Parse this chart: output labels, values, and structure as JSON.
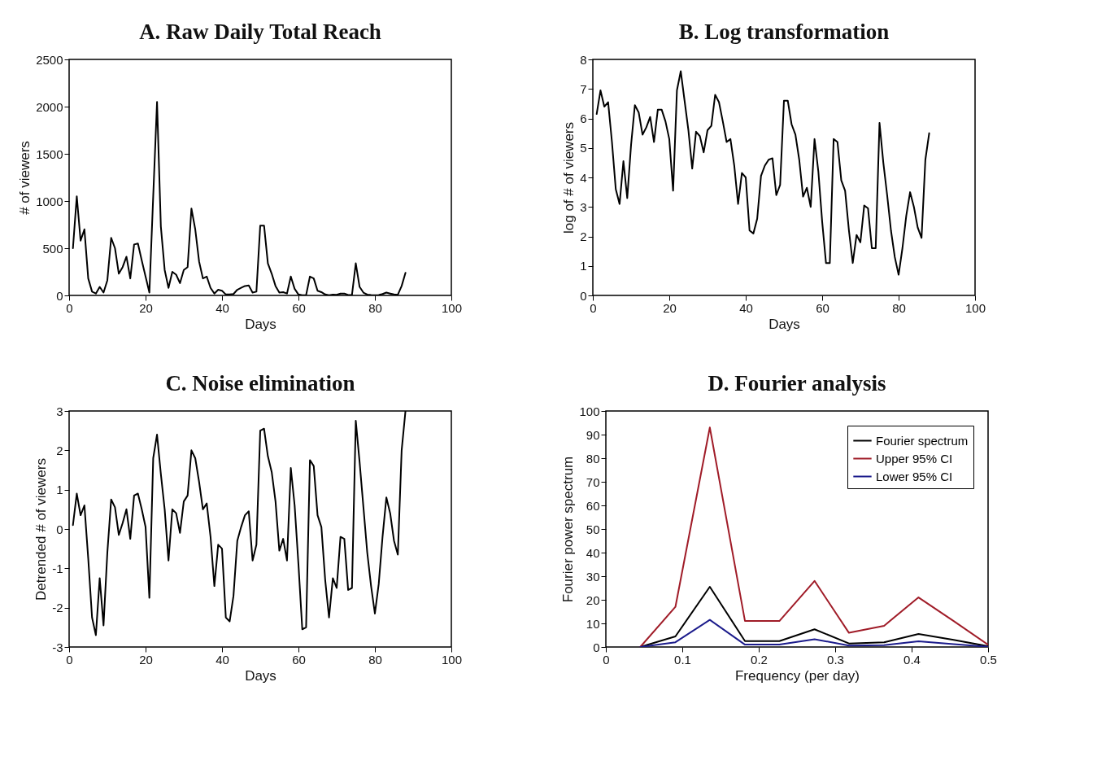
{
  "chart_data": [
    {
      "type": "line",
      "title": "A. Raw Daily Total Reach",
      "xlabel": "Days",
      "ylabel": "# of viewers",
      "x": [
        1,
        2,
        3,
        4,
        5,
        6,
        7,
        8,
        9,
        10,
        11,
        12,
        13,
        14,
        15,
        16,
        17,
        18,
        19,
        20,
        21,
        22,
        23,
        24,
        25,
        26,
        27,
        28,
        29,
        30,
        31,
        32,
        33,
        34,
        35,
        36,
        37,
        38,
        39,
        40,
        41,
        42,
        43,
        44,
        45,
        46,
        47,
        48,
        49,
        50,
        51,
        52,
        53,
        54,
        55,
        56,
        57,
        58,
        59,
        60,
        61,
        62,
        63,
        64,
        65,
        66,
        67,
        68,
        69,
        70,
        71,
        72,
        73,
        74,
        75,
        76,
        77,
        78,
        79,
        80,
        81,
        82,
        83,
        84,
        85,
        86,
        87,
        88
      ],
      "series": [
        {
          "color": "#000000",
          "values": [
            500,
            1050,
            580,
            700,
            180,
            40,
            20,
            90,
            30,
            160,
            610,
            500,
            230,
            300,
            410,
            180,
            540,
            550,
            370,
            200,
            30,
            1050,
            2050,
            730,
            270,
            80,
            250,
            220,
            130,
            270,
            300,
            920,
            700,
            360,
            180,
            200,
            80,
            20,
            60,
            50,
            10,
            10,
            15,
            60,
            80,
            100,
            105,
            30,
            40,
            740,
            740,
            340,
            230,
            100,
            30,
            35,
            20,
            200,
            70,
            10,
            3,
            3,
            200,
            180,
            50,
            35,
            10,
            3,
            8,
            6,
            20,
            20,
            5,
            5,
            340,
            90,
            30,
            9,
            4,
            2,
            5,
            15,
            30,
            20,
            10,
            7,
            100,
            240
          ]
        }
      ],
      "xlim": [
        0,
        100
      ],
      "xticks": [
        0,
        20,
        40,
        60,
        80,
        100
      ],
      "ylim": [
        0,
        2500
      ],
      "yticks": [
        0,
        500,
        1000,
        1500,
        2000,
        2500
      ],
      "grid": false
    },
    {
      "type": "line",
      "title": "B. Log transformation",
      "xlabel": "Days",
      "ylabel": "log of # of viewers",
      "x": [
        1,
        2,
        3,
        4,
        5,
        6,
        7,
        8,
        9,
        10,
        11,
        12,
        13,
        14,
        15,
        16,
        17,
        18,
        19,
        20,
        21,
        22,
        23,
        24,
        25,
        26,
        27,
        28,
        29,
        30,
        31,
        32,
        33,
        34,
        35,
        36,
        37,
        38,
        39,
        40,
        41,
        42,
        43,
        44,
        45,
        46,
        47,
        48,
        49,
        50,
        51,
        52,
        53,
        54,
        55,
        56,
        57,
        58,
        59,
        60,
        61,
        62,
        63,
        64,
        65,
        66,
        67,
        68,
        69,
        70,
        71,
        72,
        73,
        74,
        75,
        76,
        77,
        78,
        79,
        80,
        81,
        82,
        83,
        84,
        85,
        86,
        87,
        88
      ],
      "series": [
        {
          "color": "#000000",
          "values": [
            6.15,
            6.95,
            6.4,
            6.55,
            5.2,
            3.6,
            3.1,
            4.55,
            3.3,
            5.1,
            6.45,
            6.2,
            5.45,
            5.7,
            6.05,
            5.2,
            6.3,
            6.3,
            5.9,
            5.3,
            3.55,
            6.95,
            7.6,
            6.6,
            5.6,
            4.3,
            5.55,
            5.4,
            4.85,
            5.6,
            5.75,
            6.8,
            6.55,
            5.9,
            5.2,
            5.3,
            4.4,
            3.1,
            4.15,
            4.0,
            2.2,
            2.1,
            2.6,
            4.05,
            4.4,
            4.6,
            4.65,
            3.4,
            3.75,
            6.6,
            6.6,
            5.8,
            5.45,
            4.6,
            3.35,
            3.65,
            3.0,
            5.3,
            4.2,
            2.5,
            1.1,
            1.1,
            5.3,
            5.2,
            3.9,
            3.55,
            2.2,
            1.1,
            2.05,
            1.8,
            3.05,
            2.95,
            1.6,
            1.6,
            5.85,
            4.5,
            3.4,
            2.2,
            1.3,
            0.7,
            1.6,
            2.7,
            3.5,
            3.0,
            2.3,
            1.95,
            4.6,
            5.5
          ]
        }
      ],
      "xlim": [
        0,
        100
      ],
      "xticks": [
        0,
        20,
        40,
        60,
        80,
        100
      ],
      "ylim": [
        0,
        8
      ],
      "yticks": [
        0,
        1,
        2,
        3,
        4,
        5,
        6,
        7,
        8
      ],
      "grid": false
    },
    {
      "type": "line",
      "title": "C. Noise elimination",
      "xlabel": "Days",
      "ylabel": "Detrended # of viewers",
      "x": [
        1,
        2,
        3,
        4,
        5,
        6,
        7,
        8,
        9,
        10,
        11,
        12,
        13,
        14,
        15,
        16,
        17,
        18,
        19,
        20,
        21,
        22,
        23,
        24,
        25,
        26,
        27,
        28,
        29,
        30,
        31,
        32,
        33,
        34,
        35,
        36,
        37,
        38,
        39,
        40,
        41,
        42,
        43,
        44,
        45,
        46,
        47,
        48,
        49,
        50,
        51,
        52,
        53,
        54,
        55,
        56,
        57,
        58,
        59,
        60,
        61,
        62,
        63,
        64,
        65,
        66,
        67,
        68,
        69,
        70,
        71,
        72,
        73,
        74,
        75,
        76,
        77,
        78,
        79,
        80,
        81,
        82,
        83,
        84,
        85,
        86,
        87,
        88
      ],
      "series": [
        {
          "color": "#000000",
          "values": [
            0.1,
            0.9,
            0.35,
            0.6,
            -0.75,
            -2.25,
            -2.7,
            -1.25,
            -2.45,
            -0.6,
            0.75,
            0.55,
            -0.15,
            0.15,
            0.5,
            -0.25,
            0.85,
            0.9,
            0.5,
            0.05,
            -1.75,
            1.8,
            2.4,
            1.4,
            0.5,
            -0.8,
            0.5,
            0.4,
            -0.1,
            0.7,
            0.85,
            2.0,
            1.8,
            1.2,
            0.5,
            0.65,
            -0.2,
            -1.45,
            -0.4,
            -0.5,
            -2.25,
            -2.35,
            -1.7,
            -0.3,
            0.05,
            0.35,
            0.45,
            -0.8,
            -0.4,
            2.5,
            2.55,
            1.85,
            1.45,
            0.7,
            -0.55,
            -0.25,
            -0.8,
            1.55,
            0.6,
            -0.9,
            -2.55,
            -2.5,
            1.75,
            1.6,
            0.35,
            0.05,
            -1.3,
            -2.25,
            -1.25,
            -1.5,
            -0.2,
            -0.25,
            -1.55,
            -1.5,
            2.75,
            1.7,
            0.55,
            -0.6,
            -1.45,
            -2.15,
            -1.4,
            -0.2,
            0.8,
            0.4,
            -0.3,
            -0.65,
            2.0,
            3.0
          ]
        }
      ],
      "xlim": [
        0,
        100
      ],
      "xticks": [
        0,
        20,
        40,
        60,
        80,
        100
      ],
      "ylim": [
        -3,
        3
      ],
      "yticks": [
        -3,
        -2,
        -1,
        0,
        1,
        2,
        3
      ],
      "grid": false
    },
    {
      "type": "line",
      "title": "D. Fourier analysis",
      "xlabel": "Frequency (per day)",
      "ylabel": "Fourier power spectrum",
      "x": [
        0.045,
        0.091,
        0.136,
        0.182,
        0.227,
        0.273,
        0.318,
        0.364,
        0.409,
        0.455,
        0.5
      ],
      "series": [
        {
          "name": "Fourier spectrum",
          "color": "#000000",
          "values": [
            0,
            4.5,
            25.5,
            2.5,
            2.5,
            7.5,
            1.5,
            2,
            5.5,
            3,
            0.3
          ]
        },
        {
          "name": "Upper 95% CI",
          "color": "#a01c28",
          "values": [
            0,
            17,
            93,
            11,
            11,
            28,
            6,
            9,
            21,
            11,
            1
          ]
        },
        {
          "name": "Lower 95% CI",
          "color": "#1c1c8c",
          "values": [
            0,
            2,
            11.5,
            1,
            1,
            3.3,
            0.6,
            0.8,
            2.4,
            1.2,
            0.1
          ]
        }
      ],
      "xlim": [
        0,
        0.5
      ],
      "xticks": [
        0,
        0.1,
        0.2,
        0.3,
        0.4,
        0.5
      ],
      "ylim": [
        0,
        100
      ],
      "yticks": [
        0,
        10,
        20,
        30,
        40,
        50,
        60,
        70,
        80,
        90,
        100
      ],
      "grid": false,
      "legend": "top right"
    }
  ]
}
